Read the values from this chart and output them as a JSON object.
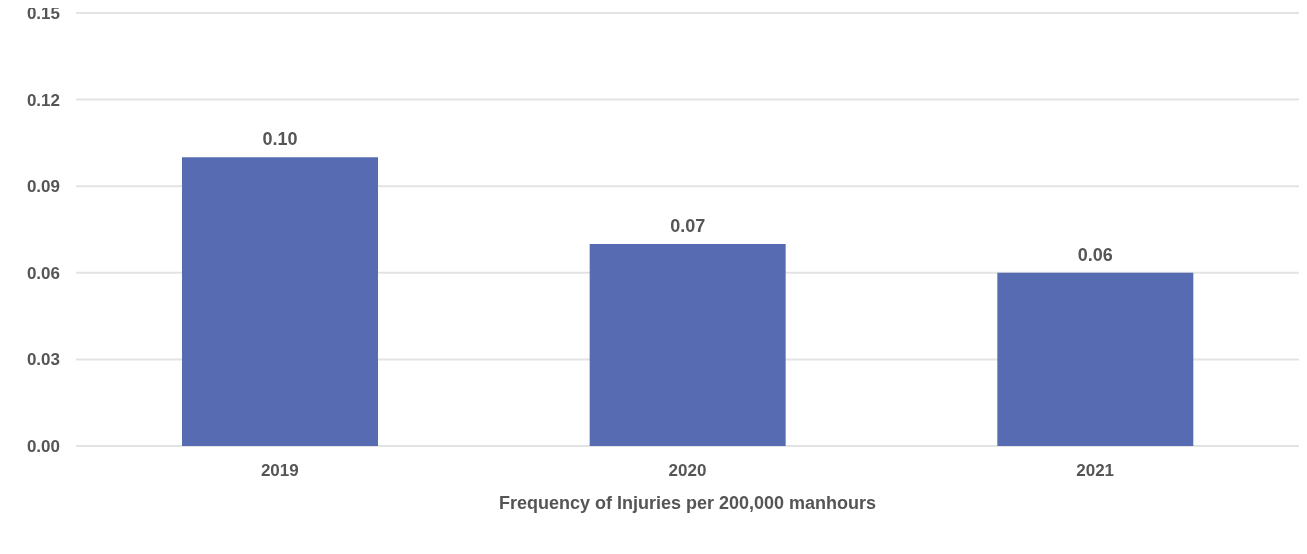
{
  "chart_data": {
    "type": "bar",
    "xlabel": "Frequency of Injuries per 200,000 manhours",
    "categories": [
      "2019",
      "2020",
      "2021"
    ],
    "values": [
      0.1,
      0.07,
      0.06
    ],
    "color": "#566bb2",
    "value_labels": [
      "0.10",
      "0.07",
      "0.06"
    ],
    "ylim": [
      0,
      0.15
    ],
    "yticks": [
      {
        "value": 0,
        "label": "0.00"
      },
      {
        "value": 0.03,
        "label": "0.03"
      },
      {
        "value": 0.06,
        "label": "0.06"
      },
      {
        "value": 0.09,
        "label": "0.09"
      },
      {
        "value": 0.12,
        "label": "0.12"
      },
      {
        "value": 0.15,
        "label": "0.15"
      }
    ],
    "grid": "y"
  }
}
